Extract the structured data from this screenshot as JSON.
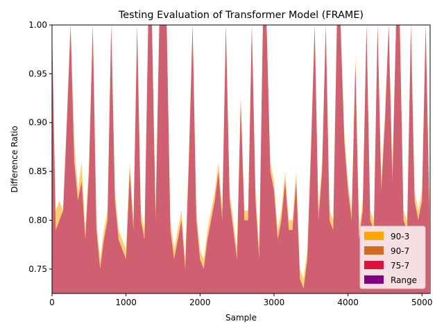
{
  "chart_data": {
    "type": "area",
    "title": "Testing Evaluation of Transformer Model (FRAME)",
    "xlabel": "Sample",
    "ylabel": "Difference Ratio",
    "xlim": [
      0,
      5110
    ],
    "ylim": [
      0.725,
      1.0
    ],
    "x_ticks": [
      0,
      1000,
      2000,
      3000,
      4000,
      5000
    ],
    "x_tick_labels": [
      "0",
      "1000",
      "2000",
      "3000",
      "4000",
      "5000"
    ],
    "y_ticks": [
      0.75,
      0.8,
      0.85,
      0.9,
      0.95,
      1.0
    ],
    "y_tick_labels": [
      "0.75",
      "0.80",
      "0.85",
      "0.90",
      "0.95",
      "1.00"
    ],
    "grid": false,
    "legend_position": "lower-right",
    "series": [
      {
        "name": "90-3",
        "color": "#FFA500"
      },
      {
        "name": "90-7",
        "color": "#D2691E"
      },
      {
        "name": "75-7",
        "color": "#DC143C"
      },
      {
        "name": "Range",
        "color": "#800080"
      }
    ],
    "x": [
      0,
      50,
      100,
      150,
      200,
      250,
      300,
      350,
      400,
      450,
      500,
      550,
      600,
      650,
      700,
      750,
      800,
      850,
      900,
      950,
      1000,
      1050,
      1100,
      1150,
      1200,
      1250,
      1300,
      1350,
      1400,
      1450,
      1500,
      1550,
      1600,
      1650,
      1700,
      1750,
      1800,
      1850,
      1900,
      1950,
      2000,
      2050,
      2100,
      2150,
      2200,
      2250,
      2300,
      2350,
      2400,
      2450,
      2500,
      2550,
      2600,
      2650,
      2700,
      2750,
      2800,
      2850,
      2900,
      2950,
      3000,
      3050,
      3100,
      3150,
      3200,
      3250,
      3300,
      3350,
      3400,
      3450,
      3500,
      3550,
      3600,
      3650,
      3700,
      3750,
      3800,
      3850,
      3900,
      3950,
      4000,
      4050,
      4100,
      4150,
      4200,
      4250,
      4300,
      4350,
      4400,
      4450,
      4500,
      4550,
      4600,
      4650,
      4700,
      4750,
      4800,
      4850,
      4900,
      4950,
      5000,
      5050,
      5100
    ],
    "values_75_7": [
      1.0,
      0.79,
      0.8,
      0.81,
      0.9,
      1.0,
      0.86,
      0.82,
      0.84,
      0.78,
      0.85,
      1.0,
      0.79,
      0.75,
      0.78,
      0.8,
      1.0,
      0.82,
      0.78,
      0.77,
      0.76,
      0.85,
      0.79,
      1.0,
      0.8,
      0.78,
      1.0,
      1.0,
      0.8,
      1.0,
      1.0,
      1.0,
      0.79,
      0.76,
      0.78,
      0.8,
      0.75,
      0.86,
      1.0,
      0.8,
      0.76,
      0.75,
      0.78,
      0.8,
      0.82,
      0.85,
      0.8,
      1.0,
      0.82,
      0.79,
      0.76,
      0.92,
      0.8,
      0.8,
      1.0,
      0.82,
      0.76,
      1.0,
      1.0,
      0.85,
      0.83,
      0.78,
      0.8,
      0.84,
      0.79,
      0.79,
      0.84,
      0.74,
      0.73,
      0.76,
      0.87,
      1.0,
      0.8,
      0.85,
      1.0,
      0.8,
      0.79,
      1.0,
      1.0,
      0.88,
      0.83,
      0.8,
      0.96,
      0.78,
      0.81,
      1.0,
      0.8,
      0.79,
      1.0,
      0.83,
      0.9,
      1.0,
      0.84,
      1.0,
      1.0,
      0.8,
      0.79,
      1.0,
      0.82,
      0.8,
      0.82,
      1.0,
      0.81
    ],
    "values_90_3": [
      0.98,
      0.81,
      0.82,
      0.81,
      0.9,
      1.0,
      0.88,
      0.83,
      0.86,
      0.79,
      0.86,
      1.0,
      0.8,
      0.76,
      0.79,
      0.81,
      1.0,
      0.83,
      0.79,
      0.78,
      0.77,
      0.86,
      0.8,
      1.0,
      0.81,
      0.79,
      1.0,
      1.0,
      0.81,
      1.0,
      1.0,
      1.0,
      0.8,
      0.77,
      0.79,
      0.81,
      0.76,
      0.87,
      1.0,
      0.81,
      0.77,
      0.76,
      0.79,
      0.81,
      0.83,
      0.86,
      0.81,
      1.0,
      0.83,
      0.8,
      0.77,
      0.93,
      0.81,
      0.81,
      1.0,
      0.83,
      0.77,
      1.0,
      1.0,
      0.86,
      0.84,
      0.79,
      0.81,
      0.85,
      0.8,
      0.8,
      0.85,
      0.75,
      0.74,
      0.77,
      0.88,
      1.0,
      0.81,
      0.86,
      1.0,
      0.81,
      0.8,
      1.0,
      1.0,
      0.89,
      0.84,
      0.81,
      0.97,
      0.79,
      0.82,
      1.0,
      0.81,
      0.8,
      1.0,
      0.84,
      0.91,
      1.0,
      0.85,
      1.0,
      1.0,
      0.81,
      0.8,
      1.0,
      0.83,
      0.81,
      0.83,
      1.0,
      0.82
    ]
  }
}
